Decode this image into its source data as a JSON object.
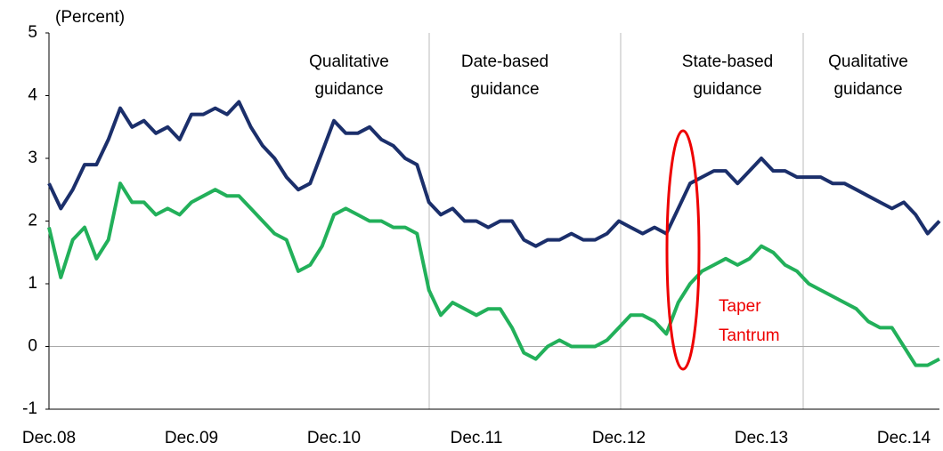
{
  "chart_data": {
    "type": "line",
    "y_label": "(Percent)",
    "categories": [
      "Dec.08",
      null,
      null,
      null,
      null,
      null,
      null,
      null,
      null,
      null,
      null,
      null,
      "Dec.09",
      null,
      null,
      null,
      null,
      null,
      null,
      null,
      null,
      null,
      null,
      null,
      "Dec.10",
      null,
      null,
      null,
      null,
      null,
      null,
      null,
      null,
      null,
      null,
      null,
      "Dec.11",
      null,
      null,
      null,
      null,
      null,
      null,
      null,
      null,
      null,
      null,
      null,
      "Dec.12",
      null,
      null,
      null,
      null,
      null,
      null,
      null,
      null,
      null,
      null,
      null,
      "Dec.13",
      null,
      null,
      null,
      null,
      null,
      null,
      null,
      null,
      null,
      null,
      null,
      "Dec.14",
      null,
      null,
      null
    ],
    "series": [
      {
        "color": "#1b2f6b",
        "values": [
          2.6,
          2.2,
          2.5,
          2.9,
          2.9,
          3.3,
          3.8,
          3.5,
          3.6,
          3.4,
          3.5,
          3.3,
          3.7,
          3.7,
          3.8,
          3.7,
          3.9,
          3.5,
          3.2,
          3.0,
          2.7,
          2.5,
          2.6,
          3.1,
          3.6,
          3.4,
          3.4,
          3.5,
          3.3,
          3.2,
          3.0,
          2.9,
          2.3,
          2.1,
          2.2,
          2.0,
          2.0,
          1.9,
          2.0,
          2.0,
          1.7,
          1.6,
          1.7,
          1.7,
          1.8,
          1.7,
          1.7,
          1.8,
          2.0,
          1.9,
          1.8,
          1.9,
          1.8,
          2.2,
          2.6,
          2.7,
          2.8,
          2.8,
          2.6,
          2.8,
          3.0,
          2.8,
          2.8,
          2.7,
          2.7,
          2.7,
          2.6,
          2.6,
          2.5,
          2.4,
          2.3,
          2.2,
          2.3,
          2.1,
          1.8,
          2.0
        ]
      },
      {
        "color": "#22b05a",
        "values": [
          1.9,
          1.1,
          1.7,
          1.9,
          1.4,
          1.7,
          2.6,
          2.3,
          2.3,
          2.1,
          2.2,
          2.1,
          2.3,
          2.4,
          2.5,
          2.4,
          2.4,
          2.2,
          2.0,
          1.8,
          1.7,
          1.2,
          1.3,
          1.6,
          2.1,
          2.2,
          2.1,
          2.0,
          2.0,
          1.9,
          1.9,
          1.8,
          0.9,
          0.5,
          0.7,
          0.6,
          0.5,
          0.6,
          0.6,
          0.3,
          -0.1,
          -0.2,
          0.0,
          0.1,
          0.0,
          0.0,
          0.0,
          0.1,
          0.3,
          0.5,
          0.5,
          0.4,
          0.2,
          0.7,
          1.0,
          1.2,
          1.3,
          1.4,
          1.3,
          1.4,
          1.6,
          1.5,
          1.3,
          1.2,
          1.0,
          0.9,
          0.8,
          0.7,
          0.6,
          0.4,
          0.3,
          0.3,
          0.0,
          -0.3,
          -0.3,
          -0.2
        ]
      }
    ],
    "ylim": [
      -1,
      5
    ],
    "yticks": [
      -1,
      0,
      1,
      2,
      3,
      4,
      5
    ],
    "annotations": [
      [
        "Qualitative",
        "guidance"
      ],
      [
        "Date-based",
        "guidance"
      ],
      [
        "State-based",
        "guidance"
      ],
      [
        "Qualitative",
        "guidance"
      ]
    ],
    "callout": [
      "Taper",
      "Tantrum"
    ]
  }
}
